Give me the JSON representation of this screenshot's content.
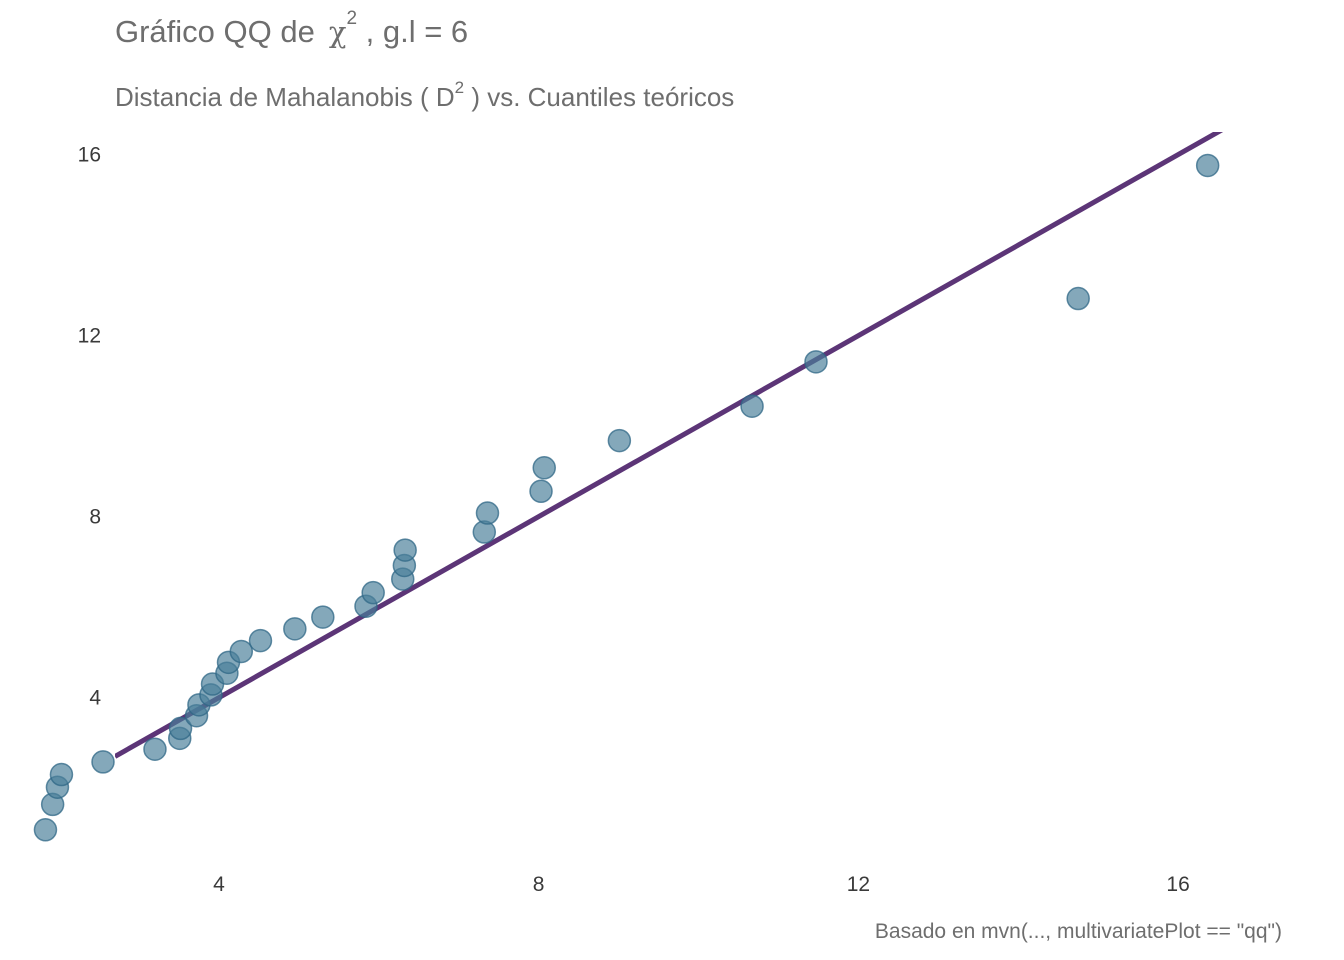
{
  "title": {
    "prefix": "Gráfico QQ de",
    "symbol": "χ",
    "superscript": "2",
    "suffix": ", g.l =  6"
  },
  "subtitle": {
    "prefix": "Distancia de Mahalanobis ( D",
    "superscript": "2",
    "suffix": " ) vs. Cuantiles teóricos"
  },
  "caption": "Basado en mvn(..., multivariatePlot == \"qq\")",
  "colors": {
    "points_fill": "#4a7f9a",
    "points_stroke": "#2f6785",
    "line": "#5c3577",
    "text": "#6e6e6e"
  },
  "chart_data": {
    "type": "scatter",
    "title": "Gráfico QQ de χ² , g.l =  6",
    "subtitle": "Distancia de Mahalanobis ( D² ) vs. Cuantiles teóricos",
    "xlabel": "",
    "ylabel": "",
    "xlim": [
      2.7,
      17.4
    ],
    "ylim": [
      0.5,
      16.5
    ],
    "x_ticks": [
      4,
      8,
      12,
      16
    ],
    "y_ticks": [
      4,
      8,
      12,
      16
    ],
    "x_tick_labels": [
      "4",
      "8",
      "12",
      "16"
    ],
    "y_tick_labels": [
      "4",
      "8",
      "12",
      "16"
    ],
    "grid": false,
    "reference_line": {
      "intercept": 0,
      "slope": 1
    },
    "points": [
      {
        "x": 1.83,
        "y": 1.08
      },
      {
        "x": 1.92,
        "y": 1.64
      },
      {
        "x": 1.98,
        "y": 2.02
      },
      {
        "x": 2.03,
        "y": 2.3
      },
      {
        "x": 2.55,
        "y": 2.58
      },
      {
        "x": 3.2,
        "y": 2.86
      },
      {
        "x": 3.51,
        "y": 3.1
      },
      {
        "x": 3.52,
        "y": 3.32
      },
      {
        "x": 3.72,
        "y": 3.6
      },
      {
        "x": 3.75,
        "y": 3.84
      },
      {
        "x": 3.9,
        "y": 4.06
      },
      {
        "x": 3.92,
        "y": 4.3
      },
      {
        "x": 4.1,
        "y": 4.54
      },
      {
        "x": 4.12,
        "y": 4.78
      },
      {
        "x": 4.28,
        "y": 5.02
      },
      {
        "x": 4.52,
        "y": 5.26
      },
      {
        "x": 4.95,
        "y": 5.52
      },
      {
        "x": 5.3,
        "y": 5.78
      },
      {
        "x": 5.84,
        "y": 6.02
      },
      {
        "x": 5.93,
        "y": 6.32
      },
      {
        "x": 6.3,
        "y": 6.62
      },
      {
        "x": 6.32,
        "y": 6.92
      },
      {
        "x": 6.33,
        "y": 7.26
      },
      {
        "x": 7.32,
        "y": 7.66
      },
      {
        "x": 7.36,
        "y": 8.08
      },
      {
        "x": 8.03,
        "y": 8.56
      },
      {
        "x": 8.07,
        "y": 9.08
      },
      {
        "x": 9.01,
        "y": 9.68
      },
      {
        "x": 10.67,
        "y": 10.44
      },
      {
        "x": 11.47,
        "y": 11.42
      },
      {
        "x": 14.75,
        "y": 12.82
      },
      {
        "x": 16.37,
        "y": 15.76
      }
    ]
  }
}
